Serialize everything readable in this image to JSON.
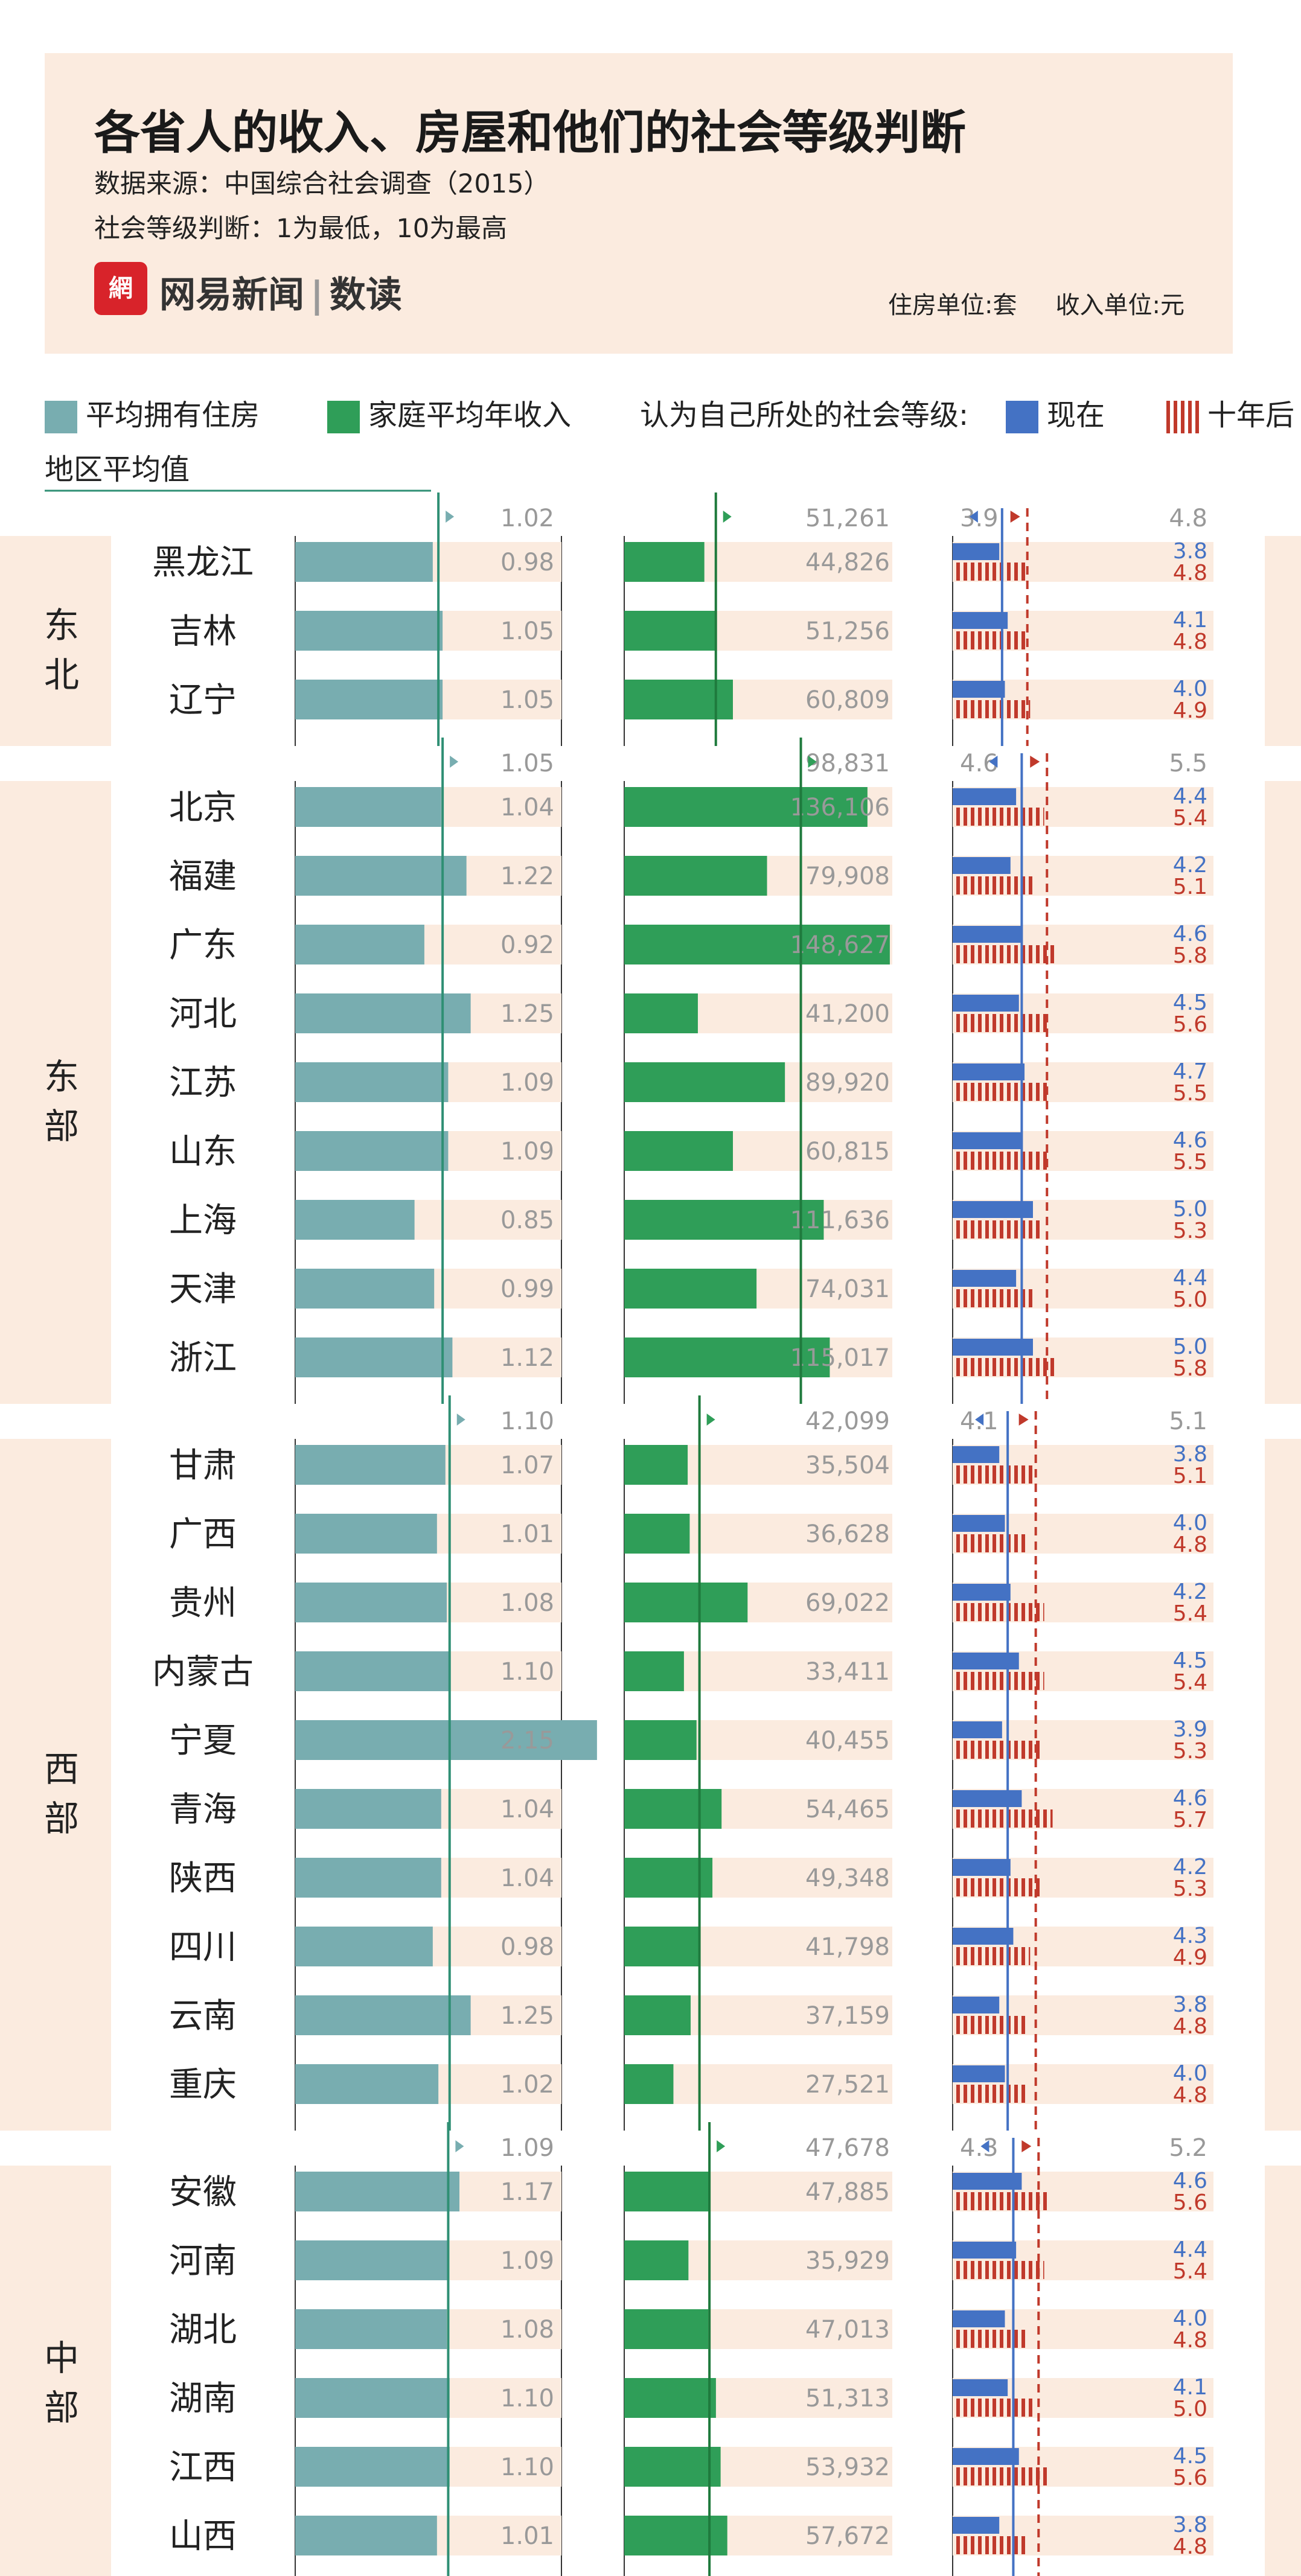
{
  "header": {
    "title": "各省人的收入、房屋和他们的社会等级判断",
    "source": "数据来源：中国综合社会调查（2015）",
    "scale_note": "社会等级判断：1为最低，10为最高",
    "logo_brand": "网易新闻",
    "logo_product": "数读",
    "housing_unit": "住房单位:套",
    "income_unit": "收入单位:元"
  },
  "legend": {
    "housing": "平均拥有住房",
    "income": "家庭平均年收入",
    "rank_prefix": "认为自己所处的社会等级:",
    "now": "现在",
    "ten_years": "十年后",
    "region_avg": "地区平均值"
  },
  "colors": {
    "housing": "#78adb0",
    "housing_line": "#2f8f74",
    "income": "#2f9e58",
    "income_line": "#1f7a3d",
    "now": "#4472c4",
    "ten_years": "#c0392b",
    "row_bg": "#fbebdf",
    "header_bg": "#fbebdf"
  },
  "chart_data": {
    "type": "bar",
    "series": [
      {
        "name": "平均拥有住房",
        "field": "housing"
      },
      {
        "name": "家庭平均年收入",
        "field": "income"
      },
      {
        "name": "现在",
        "field": "now"
      },
      {
        "name": "十年后",
        "field": "future"
      }
    ],
    "regions": [
      {
        "name": "东北",
        "avg": {
          "housing": "1.02",
          "income": "51,261",
          "now": "3.9",
          "future": "4.8"
        },
        "provinces": [
          {
            "name": "黑龙江",
            "housing": "0.98",
            "income": "44,826",
            "now": "3.8",
            "future": "4.8"
          },
          {
            "name": "吉林",
            "housing": "1.05",
            "income": "51,256",
            "now": "4.1",
            "future": "4.8"
          },
          {
            "name": "辽宁",
            "housing": "1.05",
            "income": "60,809",
            "now": "4.0",
            "future": "4.9"
          }
        ]
      },
      {
        "name": "东部",
        "avg": {
          "housing": "1.05",
          "income": "98,831",
          "now": "4.6",
          "future": "5.5"
        },
        "provinces": [
          {
            "name": "北京",
            "housing": "1.04",
            "income": "136,106",
            "now": "4.4",
            "future": "5.4"
          },
          {
            "name": "福建",
            "housing": "1.22",
            "income": "79,908",
            "now": "4.2",
            "future": "5.1"
          },
          {
            "name": "广东",
            "housing": "0.92",
            "income": "148,627",
            "now": "4.6",
            "future": "5.8"
          },
          {
            "name": "河北",
            "housing": "1.25",
            "income": "41,200",
            "now": "4.5",
            "future": "5.6"
          },
          {
            "name": "江苏",
            "housing": "1.09",
            "income": "89,920",
            "now": "4.7",
            "future": "5.5"
          },
          {
            "name": "山东",
            "housing": "1.09",
            "income": "60,815",
            "now": "4.6",
            "future": "5.5"
          },
          {
            "name": "上海",
            "housing": "0.85",
            "income": "111,636",
            "now": "5.0",
            "future": "5.3"
          },
          {
            "name": "天津",
            "housing": "0.99",
            "income": "74,031",
            "now": "4.4",
            "future": "5.0"
          },
          {
            "name": "浙江",
            "housing": "1.12",
            "income": "115,017",
            "now": "5.0",
            "future": "5.8"
          }
        ]
      },
      {
        "name": "西部",
        "avg": {
          "housing": "1.10",
          "income": "42,099",
          "now": "4.1",
          "future": "5.1"
        },
        "provinces": [
          {
            "name": "甘肃",
            "housing": "1.07",
            "income": "35,504",
            "now": "3.8",
            "future": "5.1"
          },
          {
            "name": "广西",
            "housing": "1.01",
            "income": "36,628",
            "now": "4.0",
            "future": "4.8"
          },
          {
            "name": "贵州",
            "housing": "1.08",
            "income": "69,022",
            "now": "4.2",
            "future": "5.4"
          },
          {
            "name": "内蒙古",
            "housing": "1.10",
            "income": "33,411",
            "now": "4.5",
            "future": "5.4"
          },
          {
            "name": "宁夏",
            "housing": "2.15",
            "income": "40,455",
            "now": "3.9",
            "future": "5.3"
          },
          {
            "name": "青海",
            "housing": "1.04",
            "income": "54,465",
            "now": "4.6",
            "future": "5.7"
          },
          {
            "name": "陕西",
            "housing": "1.04",
            "income": "49,348",
            "now": "4.2",
            "future": "5.3"
          },
          {
            "name": "四川",
            "housing": "0.98",
            "income": "41,798",
            "now": "4.3",
            "future": "4.9"
          },
          {
            "name": "云南",
            "housing": "1.25",
            "income": "37,159",
            "now": "3.8",
            "future": "4.8"
          },
          {
            "name": "重庆",
            "housing": "1.02",
            "income": "27,521",
            "now": "4.0",
            "future": "4.8"
          }
        ]
      },
      {
        "name": "中部",
        "avg": {
          "housing": "1.09",
          "income": "47,678",
          "now": "4.3",
          "future": "5.2"
        },
        "provinces": [
          {
            "name": "安徽",
            "housing": "1.17",
            "income": "47,885",
            "now": "4.6",
            "future": "5.6"
          },
          {
            "name": "河南",
            "housing": "1.09",
            "income": "35,929",
            "now": "4.4",
            "future": "5.4"
          },
          {
            "name": "湖北",
            "housing": "1.08",
            "income": "47,013",
            "now": "4.0",
            "future": "4.8"
          },
          {
            "name": "湖南",
            "housing": "1.10",
            "income": "51,313",
            "now": "4.1",
            "future": "5.0"
          },
          {
            "name": "江西",
            "housing": "1.10",
            "income": "53,932",
            "now": "4.5",
            "future": "5.6"
          },
          {
            "name": "山西",
            "housing": "1.01",
            "income": "57,672",
            "now": "3.8",
            "future": "4.8"
          }
        ]
      }
    ]
  }
}
